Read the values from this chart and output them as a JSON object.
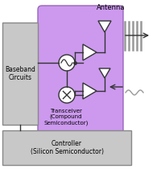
{
  "purple_color": "#cc99ee",
  "purple_edge": "#9966bb",
  "gray_color": "#c8c8c8",
  "gray_edge": "#888888",
  "line_color": "#333333",
  "text_color": "#000000",
  "baseband_label": "Baseband\nCircuits",
  "transceiver_label": "Transceiver\n(Compound\nSemiconductor)",
  "controller_label": "Controller\n(Silicon Semiconductor)",
  "signal_color": "#999999"
}
